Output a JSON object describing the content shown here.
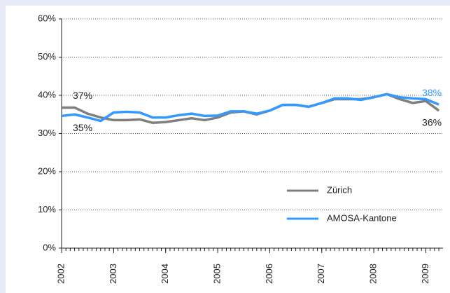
{
  "chart_data": {
    "type": "line",
    "x": [
      2002,
      2002.25,
      2002.5,
      2002.75,
      2003,
      2003.25,
      2003.5,
      2003.75,
      2004,
      2004.25,
      2004.5,
      2004.75,
      2005,
      2005.25,
      2005.5,
      2005.75,
      2006,
      2006.25,
      2006.5,
      2006.75,
      2007,
      2007.25,
      2007.5,
      2007.75,
      2008,
      2008.25,
      2008.5,
      2008.75,
      2009,
      2009.25
    ],
    "series": [
      {
        "name": "Zürich",
        "color": "#7f7f7f",
        "values": [
          36.8,
          36.8,
          35.2,
          34.2,
          33.5,
          33.5,
          33.7,
          32.8,
          33.0,
          33.5,
          34.0,
          33.5,
          34.2,
          35.5,
          35.8,
          35.0,
          36.0,
          37.5,
          37.5,
          37.0,
          38.0,
          39.0,
          39.0,
          39.0,
          39.5,
          40.3,
          39.0,
          38.0,
          38.5,
          36.0
        ],
        "value_labels": [
          "37%",
          null,
          null,
          null,
          null,
          null,
          null,
          null,
          null,
          null,
          null,
          null,
          null,
          null,
          null,
          null,
          null,
          null,
          null,
          null,
          null,
          null,
          null,
          null,
          null,
          null,
          null,
          null,
          null,
          "36%"
        ]
      },
      {
        "name": "AMOSA-Kantone",
        "color": "#3399ff",
        "values": [
          34.6,
          35.0,
          34.2,
          33.3,
          35.5,
          35.7,
          35.5,
          34.2,
          34.2,
          34.8,
          35.2,
          34.6,
          34.7,
          35.8,
          35.8,
          35.2,
          36.0,
          37.5,
          37.5,
          37.0,
          38.0,
          39.2,
          39.2,
          38.8,
          39.5,
          40.3,
          39.5,
          39.2,
          39.0,
          37.6
        ],
        "value_labels": [
          "35%",
          null,
          null,
          null,
          null,
          null,
          null,
          null,
          null,
          null,
          null,
          null,
          null,
          null,
          null,
          null,
          null,
          null,
          null,
          null,
          null,
          null,
          null,
          null,
          null,
          null,
          null,
          null,
          null,
          "38%"
        ]
      }
    ],
    "xlim": [
      2002,
      2009.33
    ],
    "xticks": [
      2002,
      2003,
      2004,
      2005,
      2006,
      2007,
      2008,
      2009
    ],
    "ylim": [
      0,
      60
    ],
    "yticks": [
      {
        "value": 0,
        "label": "0%"
      },
      {
        "value": 10,
        "label": "10%"
      },
      {
        "value": 20,
        "label": "20%"
      },
      {
        "value": 30,
        "label": "30%"
      },
      {
        "value": 40,
        "label": "40%"
      },
      {
        "value": 50,
        "label": "50%"
      },
      {
        "value": 60,
        "label": "60%"
      }
    ],
    "grid": true,
    "legend": "lower right"
  }
}
